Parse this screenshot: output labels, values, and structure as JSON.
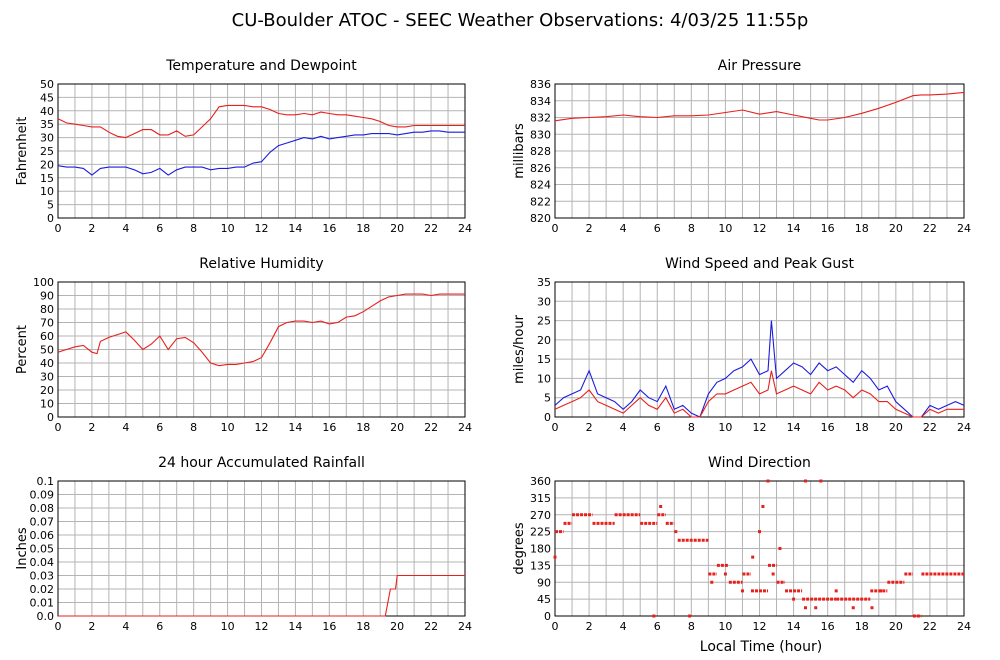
{
  "page": {
    "title": "CU-Boulder ATOC - SEEC Weather Observations: 4/03/25 11:55p",
    "xlabel": "Local Time (hour)"
  },
  "colors": {
    "red": "#e8201c",
    "blue": "#1c1ce0",
    "grid": "#b4b4b4"
  },
  "chart_data": [
    {
      "id": "temp",
      "type": "line",
      "title": "Temperature and Dewpoint",
      "ylabel": "Fahrenheit",
      "xlim": [
        0,
        24
      ],
      "ylim": [
        0,
        50
      ],
      "xticks": [
        0,
        2,
        4,
        6,
        8,
        10,
        12,
        14,
        16,
        18,
        20,
        22,
        24
      ],
      "yticks": [
        0,
        5,
        10,
        15,
        20,
        25,
        30,
        35,
        40,
        45,
        50
      ],
      "grid": true,
      "series": [
        {
          "color": "red",
          "x": [
            0,
            0.5,
            1,
            1.5,
            2,
            2.5,
            3,
            3.5,
            4,
            4.5,
            5,
            5.5,
            6,
            6.5,
            7,
            7.5,
            8,
            8.5,
            9,
            9.5,
            10,
            10.5,
            11,
            11.5,
            12,
            12.5,
            13,
            13.5,
            14,
            14.5,
            15,
            15.5,
            16,
            16.5,
            17,
            17.5,
            18,
            18.5,
            19,
            19.5,
            20,
            20.5,
            21,
            21.5,
            22,
            22.5,
            23,
            23.5,
            24
          ],
          "y": [
            37,
            35.5,
            35,
            34.5,
            34,
            34,
            32,
            30.5,
            30,
            31.5,
            33,
            33,
            31,
            31,
            32.5,
            30.5,
            31,
            34,
            37,
            41.5,
            42,
            42,
            42,
            41.5,
            41.5,
            40.5,
            39,
            38.5,
            38.5,
            39,
            38.5,
            39.5,
            39,
            38.5,
            38.5,
            38,
            37.5,
            37,
            36,
            34.5,
            34,
            34,
            34.5,
            34.5,
            34.5,
            34.5,
            34.5,
            34.5,
            34.5
          ]
        },
        {
          "color": "blue",
          "x": [
            0,
            0.5,
            1,
            1.5,
            2,
            2.5,
            3,
            3.5,
            4,
            4.5,
            5,
            5.5,
            6,
            6.5,
            7,
            7.5,
            8,
            8.5,
            9,
            9.5,
            10,
            10.5,
            11,
            11.5,
            12,
            12.5,
            13,
            13.5,
            14,
            14.5,
            15,
            15.5,
            16,
            16.5,
            17,
            17.5,
            18,
            18.5,
            19,
            19.5,
            20,
            20.5,
            21,
            21.5,
            22,
            22.5,
            23,
            23.5,
            24
          ],
          "y": [
            19.5,
            19,
            19,
            18.5,
            16,
            18.5,
            19,
            19,
            19,
            18,
            16.5,
            17,
            18.5,
            16,
            18,
            19,
            19,
            19,
            18,
            18.5,
            18.5,
            19,
            19,
            20.5,
            21,
            24.5,
            27,
            28,
            29,
            30,
            29.5,
            30.5,
            29.5,
            30,
            30.5,
            31,
            31,
            31.5,
            31.5,
            31.5,
            31,
            31.5,
            32,
            32,
            32.5,
            32.5,
            32,
            32,
            32
          ]
        }
      ]
    },
    {
      "id": "pressure",
      "type": "line",
      "title": "Air Pressure",
      "ylabel": "millibars",
      "xlim": [
        0,
        24
      ],
      "ylim": [
        820,
        836
      ],
      "xticks": [
        0,
        2,
        4,
        6,
        8,
        10,
        12,
        14,
        16,
        18,
        20,
        22,
        24
      ],
      "yticks": [
        820,
        822,
        824,
        826,
        828,
        830,
        832,
        834,
        836
      ],
      "grid": true,
      "series": [
        {
          "color": "red",
          "x": [
            0,
            1,
            2,
            3,
            4,
            5,
            6,
            7,
            8,
            9,
            10,
            11,
            12,
            13,
            14,
            15,
            15.5,
            16,
            17,
            18,
            19,
            20,
            21,
            21.5,
            22,
            23,
            24
          ],
          "y": [
            831.6,
            831.9,
            832.0,
            832.1,
            832.3,
            832.1,
            832.0,
            832.2,
            832.2,
            832.3,
            832.6,
            832.9,
            832.4,
            832.7,
            832.3,
            831.9,
            831.7,
            831.7,
            832.0,
            832.5,
            833.1,
            833.8,
            834.6,
            834.7,
            834.7,
            834.8,
            835.0
          ]
        }
      ]
    },
    {
      "id": "rh",
      "type": "line",
      "title": "Relative Humidity",
      "ylabel": "Percent",
      "xlim": [
        0,
        24
      ],
      "ylim": [
        0,
        100
      ],
      "xticks": [
        0,
        2,
        4,
        6,
        8,
        10,
        12,
        14,
        16,
        18,
        20,
        22,
        24
      ],
      "yticks": [
        0,
        10,
        20,
        30,
        40,
        50,
        60,
        70,
        80,
        90,
        100
      ],
      "grid": true,
      "series": [
        {
          "color": "red",
          "x": [
            0,
            0.5,
            1,
            1.5,
            2,
            2.3,
            2.5,
            3,
            3.5,
            4,
            4.5,
            5,
            5.5,
            6,
            6.5,
            7,
            7.5,
            8,
            8.5,
            9,
            9.5,
            10,
            10.5,
            11,
            11.5,
            12,
            12.5,
            13,
            13.5,
            14,
            14.5,
            15,
            15.5,
            16,
            16.5,
            17,
            17.5,
            18,
            18.5,
            19,
            19.5,
            20,
            20.5,
            21,
            21.5,
            22,
            22.5,
            23,
            23.5,
            24
          ],
          "y": [
            48,
            50,
            52,
            53,
            48,
            47,
            56,
            59,
            61,
            63,
            57,
            50,
            54,
            60,
            50,
            58,
            59,
            55,
            48,
            40,
            38,
            39,
            39,
            40,
            41,
            44,
            55,
            67,
            70,
            71,
            71,
            70,
            71,
            69,
            70,
            74,
            75,
            78,
            82,
            86,
            89,
            90,
            91,
            91,
            91,
            90,
            91,
            91,
            91,
            91
          ]
        }
      ]
    },
    {
      "id": "wind",
      "type": "line",
      "title": "Wind Speed and Peak Gust",
      "ylabel": "miles/hour",
      "xlim": [
        0,
        24
      ],
      "ylim": [
        0,
        35
      ],
      "xticks": [
        0,
        2,
        4,
        6,
        8,
        10,
        12,
        14,
        16,
        18,
        20,
        22,
        24
      ],
      "yticks": [
        0,
        5,
        10,
        15,
        20,
        25,
        30,
        35
      ],
      "grid": true,
      "series": [
        {
          "color": "blue",
          "x": [
            0,
            0.5,
            1,
            1.5,
            2,
            2.5,
            3,
            3.5,
            4,
            4.5,
            5,
            5.5,
            6,
            6.5,
            7,
            7.5,
            8,
            8.5,
            9,
            9.5,
            10,
            10.5,
            11,
            11.5,
            12,
            12.5,
            12.7,
            13,
            13.5,
            14,
            14.5,
            15,
            15.5,
            16,
            16.5,
            17,
            17.5,
            18,
            18.5,
            19,
            19.5,
            20,
            20.5,
            21,
            21.5,
            22,
            22.5,
            23,
            23.5,
            24
          ],
          "y": [
            3,
            5,
            6,
            7,
            12,
            6,
            5,
            4,
            2,
            4,
            7,
            5,
            4,
            8,
            2,
            3,
            1,
            0,
            6,
            9,
            10,
            12,
            13,
            15,
            11,
            12,
            25,
            10,
            12,
            14,
            13,
            11,
            14,
            12,
            13,
            11,
            9,
            12,
            10,
            7,
            8,
            4,
            2,
            0,
            0,
            3,
            2,
            3,
            4,
            3
          ]
        },
        {
          "color": "red",
          "x": [
            0,
            0.5,
            1,
            1.5,
            2,
            2.5,
            3,
            3.5,
            4,
            4.5,
            5,
            5.5,
            6,
            6.5,
            7,
            7.5,
            8,
            8.5,
            9,
            9.5,
            10,
            10.5,
            11,
            11.5,
            12,
            12.5,
            12.7,
            13,
            13.5,
            14,
            14.5,
            15,
            15.5,
            16,
            16.5,
            17,
            17.5,
            18,
            18.5,
            19,
            19.5,
            20,
            20.5,
            21,
            21.5,
            22,
            22.5,
            23,
            23.5,
            24
          ],
          "y": [
            2,
            3,
            4,
            5,
            7,
            4,
            3,
            2,
            1,
            3,
            5,
            3,
            2,
            5,
            1,
            2,
            0,
            0,
            4,
            6,
            6,
            7,
            8,
            9,
            6,
            7,
            12,
            6,
            7,
            8,
            7,
            6,
            9,
            7,
            8,
            7,
            5,
            7,
            6,
            4,
            4,
            2,
            1,
            0,
            0,
            2,
            1,
            2,
            2,
            2
          ]
        }
      ]
    },
    {
      "id": "rain",
      "type": "line",
      "title": "24 hour Accumulated Rainfall",
      "ylabel": "Inches",
      "xlim": [
        0,
        24
      ],
      "ylim": [
        0,
        0.1
      ],
      "xticks": [
        0,
        2,
        4,
        6,
        8,
        10,
        12,
        14,
        16,
        18,
        20,
        22,
        24
      ],
      "yticks": [
        0.0,
        0.01,
        0.02,
        0.03,
        0.04,
        0.05,
        0.06,
        0.07,
        0.08,
        0.09,
        0.1
      ],
      "ytick_labels": [
        "0.0",
        "0.01",
        "0.02",
        "0.03",
        "0.04",
        "0.05",
        "0.06",
        "0.07",
        "0.08",
        "0.09",
        "0.1"
      ],
      "grid": true,
      "series": [
        {
          "color": "red",
          "x": [
            0,
            19.3,
            19.6,
            19.9,
            20.0,
            24
          ],
          "y": [
            0,
            0,
            0.02,
            0.02,
            0.03,
            0.03
          ]
        }
      ]
    },
    {
      "id": "dir",
      "type": "scatter",
      "title": "Wind Direction",
      "ylabel": "degrees",
      "xlim": [
        0,
        24
      ],
      "ylim": [
        0,
        360
      ],
      "xticks": [
        0,
        2,
        4,
        6,
        8,
        10,
        12,
        14,
        16,
        18,
        20,
        22,
        24
      ],
      "yticks": [
        0,
        45,
        90,
        135,
        180,
        225,
        270,
        315,
        360
      ],
      "grid": true,
      "series": [
        {
          "color": "red",
          "segments": [
            [
              0,
              0.5,
              225
            ],
            [
              0.5,
              1.0,
              247
            ],
            [
              1.0,
              2.2,
              270
            ],
            [
              2.2,
              3.5,
              247
            ],
            [
              3.5,
              5.0,
              270
            ],
            [
              5.0,
              6.0,
              247
            ],
            [
              6.0,
              6.5,
              270
            ],
            [
              6.5,
              7.0,
              247
            ],
            [
              7.0,
              7.2,
              225
            ],
            [
              7.2,
              9.0,
              202
            ],
            [
              9.0,
              9.5,
              112
            ],
            [
              9.5,
              10.2,
              135
            ],
            [
              10.2,
              11.0,
              90
            ],
            [
              11.0,
              11.5,
              112
            ],
            [
              11.5,
              12.5,
              67
            ],
            [
              12.5,
              13.0,
              135
            ],
            [
              13.0,
              13.5,
              90
            ],
            [
              13.5,
              14.5,
              67
            ],
            [
              14.5,
              16.5,
              45
            ],
            [
              16.5,
              18.5,
              45
            ],
            [
              18.5,
              19.5,
              67
            ],
            [
              19.5,
              20.5,
              90
            ],
            [
              20.5,
              21.0,
              112
            ],
            [
              21.0,
              21.5,
              0
            ],
            [
              21.5,
              24.0,
              112
            ]
          ],
          "points": [
            [
              0,
              157
            ],
            [
              5.8,
              0
            ],
            [
              6.2,
              292
            ],
            [
              7.9,
              0
            ],
            [
              9.2,
              90
            ],
            [
              10.0,
              112
            ],
            [
              11.0,
              67
            ],
            [
              11.6,
              157
            ],
            [
              12.0,
              225
            ],
            [
              12.2,
              292
            ],
            [
              12.5,
              360
            ],
            [
              12.8,
              112
            ],
            [
              13.2,
              180
            ],
            [
              14.0,
              45
            ],
            [
              14.7,
              22
            ],
            [
              14.7,
              360
            ],
            [
              15.3,
              22
            ],
            [
              15.6,
              360
            ],
            [
              16.5,
              67
            ],
            [
              17.5,
              22
            ],
            [
              18.6,
              22
            ],
            [
              19.1,
              67
            ]
          ]
        }
      ]
    }
  ]
}
